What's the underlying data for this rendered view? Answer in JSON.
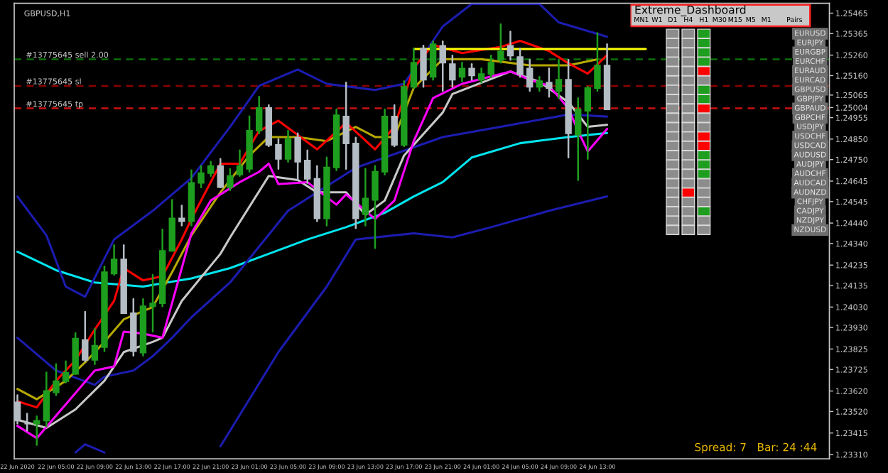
{
  "chart_data": [
    {
      "type": "candlestick",
      "title": "GBPUSD,H1",
      "x": [
        "2020-06-22T01:00",
        "2020-06-22T02:00",
        "2020-06-22T03:00",
        "2020-06-22T04:00",
        "2020-06-22T05:00",
        "2020-06-22T06:00",
        "2020-06-22T07:00",
        "2020-06-22T08:00",
        "2020-06-22T09:00",
        "2020-06-22T10:00",
        "2020-06-22T11:00",
        "2020-06-22T12:00",
        "2020-06-22T13:00",
        "2020-06-22T14:00",
        "2020-06-22T15:00",
        "2020-06-22T16:00",
        "2020-06-22T17:00",
        "2020-06-22T18:00",
        "2020-06-22T19:00",
        "2020-06-22T20:00",
        "2020-06-22T21:00",
        "2020-06-22T22:00",
        "2020-06-22T23:00",
        "2020-06-23T00:00",
        "2020-06-23T01:00",
        "2020-06-23T02:00",
        "2020-06-23T03:00",
        "2020-06-23T04:00",
        "2020-06-23T05:00",
        "2020-06-23T06:00",
        "2020-06-23T07:00",
        "2020-06-23T08:00",
        "2020-06-23T09:00",
        "2020-06-23T10:00",
        "2020-06-23T11:00",
        "2020-06-23T12:00",
        "2020-06-23T13:00",
        "2020-06-23T14:00",
        "2020-06-23T15:00",
        "2020-06-23T16:00",
        "2020-06-23T17:00",
        "2020-06-23T18:00",
        "2020-06-23T19:00",
        "2020-06-23T20:00",
        "2020-06-23T21:00",
        "2020-06-23T22:00",
        "2020-06-23T23:00",
        "2020-06-24T00:00",
        "2020-06-24T01:00",
        "2020-06-24T02:00",
        "2020-06-24T03:00",
        "2020-06-24T04:00",
        "2020-06-24T05:00",
        "2020-06-24T06:00",
        "2020-06-24T07:00",
        "2020-06-24T08:00",
        "2020-06-24T09:00",
        "2020-06-24T10:00",
        "2020-06-24T11:00",
        "2020-06-24T12:00",
        "2020-06-24T13:00",
        "2020-06-24T14:00"
      ],
      "ohlc": [
        [
          1.23565,
          1.23599,
          1.23461,
          1.23475
        ],
        [
          1.23461,
          1.23509,
          1.23427,
          1.23461
        ],
        [
          1.23461,
          1.23496,
          1.23357,
          1.23475
        ],
        [
          1.23475,
          1.2371,
          1.23447,
          1.2362
        ],
        [
          1.23613,
          1.23751,
          1.23599,
          1.23668
        ],
        [
          1.23668,
          1.23765,
          1.23661,
          1.2371
        ],
        [
          1.23703,
          1.23903,
          1.23703,
          1.23876
        ],
        [
          1.23869,
          1.24007,
          1.23765,
          1.23772
        ],
        [
          1.23772,
          1.23924,
          1.23751,
          1.23841
        ],
        [
          1.23834,
          1.24228,
          1.23814,
          1.242
        ],
        [
          1.24193,
          1.24332,
          1.24187,
          1.24263
        ],
        [
          1.24263,
          1.24332,
          1.24,
          1.24
        ],
        [
          1.24,
          1.24069,
          1.23793,
          1.23814
        ],
        [
          1.23807,
          1.24069,
          1.23793,
          1.24034
        ],
        [
          1.24034,
          1.24187,
          1.2391,
          1.24048
        ],
        [
          1.24048,
          1.24408,
          1.24034,
          1.24304
        ],
        [
          1.24304,
          1.24553,
          1.24304,
          1.24463
        ],
        [
          1.24463,
          1.24525,
          1.24428,
          1.24449
        ],
        [
          1.24449,
          1.24698,
          1.24428,
          1.24636
        ],
        [
          1.24636,
          1.24719,
          1.24615,
          1.24684
        ],
        [
          1.24684,
          1.24739,
          1.2467,
          1.24719
        ],
        [
          1.24719,
          1.24753,
          1.24615,
          1.24615
        ],
        [
          1.24615,
          1.24705,
          1.24601,
          1.2467
        ],
        [
          1.24677,
          1.24795,
          1.2467,
          1.24719
        ],
        [
          1.24705,
          1.24961,
          1.24691,
          1.24891
        ],
        [
          1.24891,
          1.25057,
          1.24878,
          1.25002
        ],
        [
          1.25002,
          1.25016,
          1.24815,
          1.24822
        ],
        [
          1.24822,
          1.2485,
          1.24705,
          1.24753
        ],
        [
          1.24753,
          1.24891,
          1.24739,
          1.2485
        ],
        [
          1.24857,
          1.24878,
          1.2465,
          1.24739
        ],
        [
          1.24746,
          1.24795,
          1.24636,
          1.24656
        ],
        [
          1.24656,
          1.24719,
          1.24449,
          1.24463
        ],
        [
          1.24463,
          1.2476,
          1.24428,
          1.24712
        ],
        [
          1.24712,
          1.24995,
          1.24698,
          1.24967
        ],
        [
          1.24961,
          1.25126,
          1.24705,
          1.24829
        ],
        [
          1.24829,
          1.24857,
          1.24415,
          1.24463
        ],
        [
          1.24484,
          1.24705,
          1.24428,
          1.2456
        ],
        [
          1.24553,
          1.24719,
          1.24318,
          1.24691
        ],
        [
          1.24691,
          1.24995,
          1.24677,
          1.24961
        ],
        [
          1.24961,
          1.25016,
          1.24815,
          1.24822
        ],
        [
          1.24822,
          1.25133,
          1.24815,
          1.25105
        ],
        [
          1.25105,
          1.25292,
          1.25099,
          1.25223
        ],
        [
          1.25292,
          1.25306,
          1.25105,
          1.2514
        ],
        [
          1.25154,
          1.25327,
          1.2514,
          1.25313
        ],
        [
          1.25306,
          1.25327,
          1.25085,
          1.25223
        ],
        [
          1.25216,
          1.25258,
          1.25105,
          1.2514
        ],
        [
          1.25154,
          1.25223,
          1.25133,
          1.25195
        ],
        [
          1.25195,
          1.25216,
          1.2514,
          1.25161
        ],
        [
          1.2514,
          1.25195,
          1.25126,
          1.25168
        ],
        [
          1.25168,
          1.25258,
          1.25154,
          1.25223
        ],
        [
          1.25237,
          1.2541,
          1.25223,
          1.25278
        ],
        [
          1.25306,
          1.25375,
          1.25237,
          1.25258
        ],
        [
          1.25251,
          1.25292,
          1.25154,
          1.25168
        ],
        [
          1.25195,
          1.25237,
          1.25085,
          1.25105
        ],
        [
          1.25105,
          1.25154,
          1.25085,
          1.25133
        ],
        [
          1.25126,
          1.25195,
          1.25057,
          1.25099
        ],
        [
          1.25085,
          1.25237,
          1.2505,
          1.2514
        ],
        [
          1.2514,
          1.25237,
          1.2476,
          1.24878
        ],
        [
          1.24871,
          1.2505,
          1.2465,
          1.24995
        ],
        [
          1.24988,
          1.25105,
          1.24753,
          1.25099
        ],
        [
          1.25099,
          1.25368,
          1.25085,
          1.25209
        ],
        [
          1.25209,
          1.25313,
          1.24995,
          1.24995
        ]
      ],
      "colors": [
        "#b4bcc4",
        "#b4bcc4",
        "#1e9e1e",
        "#1e9e1e",
        "#1e9e1e",
        "#1e9e1e",
        "#1e9e1e",
        "#b4bcc4",
        "#1e9e1e",
        "#1e9e1e",
        "#1e9e1e",
        "#b4bcc4",
        "#b4bcc4",
        "#1e9e1e",
        "#1e9e1e",
        "#1e9e1e",
        "#1e9e1e",
        "#b4bcc4",
        "#1e9e1e",
        "#1e9e1e",
        "#1e9e1e",
        "#b4bcc4",
        "#1e9e1e",
        "#1e9e1e",
        "#1e9e1e",
        "#1e9e1e",
        "#b4bcc4",
        "#b4bcc4",
        "#1e9e1e",
        "#b4bcc4",
        "#b4bcc4",
        "#b4bcc4",
        "#1e9e1e",
        "#1e9e1e",
        "#b4bcc4",
        "#b4bcc4",
        "#1e9e1e",
        "#1e9e1e",
        "#1e9e1e",
        "#b4bcc4",
        "#1e9e1e",
        "#1e9e1e",
        "#b4bcc4",
        "#1e9e1e",
        "#b4bcc4",
        "#b4bcc4",
        "#1e9e1e",
        "#b4bcc4",
        "#1e9e1e",
        "#1e9e1e",
        "#1e9e1e",
        "#b4bcc4",
        "#b4bcc4",
        "#b4bcc4",
        "#1e9e1e",
        "#b4bcc4",
        "#1e9e1e",
        "#b4bcc4",
        "#1e9e1e",
        "#1e9e1e",
        "#1e9e1e",
        "#b4bcc4"
      ],
      "series": [
        {
          "type": "line",
          "color": "#00e5ee",
          "x": [
            "2020-06-22T01:00",
            "2020-06-22T05:00",
            "2020-06-22T09:00",
            "2020-06-22T14:00",
            "2020-06-22T19:00",
            "2020-06-22T23:00",
            "2020-06-23T03:00",
            "2020-06-23T07:00",
            "2020-06-23T11:00",
            "2020-06-23T15:00",
            "2020-06-23T18:00",
            "2020-06-23T21:00",
            "2020-06-24T00:00",
            "2020-06-24T05:00",
            "2020-06-24T10:00",
            "2020-06-24T14:00"
          ],
          "values": [
            1.243,
            1.2421,
            1.2415,
            1.2413,
            1.2417,
            1.2422,
            1.2429,
            1.2436,
            1.2442,
            1.2449,
            1.2457,
            1.2464,
            1.2476,
            1.2483,
            1.2486,
            1.2488
          ]
        },
        {
          "type": "line",
          "color": "#1c1cb0",
          "x": [
            "2020-06-22T01:00",
            "2020-06-22T04:00",
            "2020-06-22T06:00",
            "2020-06-22T08:00",
            "2020-06-22T11:00",
            "2020-06-22T15:00",
            "2020-06-22T19:00",
            "2020-06-22T23:00",
            "2020-06-23T02:00",
            "2020-06-23T06:00",
            "2020-06-23T09:00",
            "2020-06-23T14:00",
            "2020-06-23T17:00",
            "2020-06-23T21:00",
            "2020-06-24T00:00",
            "2020-06-24T07:00",
            "2020-06-24T09:00",
            "2020-06-24T14:00"
          ],
          "values": [
            1.2457,
            1.2438,
            1.2413,
            1.2408,
            1.2436,
            1.245,
            1.2466,
            1.2491,
            1.2511,
            1.2519,
            1.2512,
            1.2509,
            1.2512,
            1.254,
            1.2551,
            1.2551,
            1.2542,
            1.2535
          ]
        },
        {
          "type": "line",
          "color": "#1c1cb0",
          "x": [
            "2020-06-22T01:00",
            "2020-06-22T05:00",
            "2020-06-22T09:00",
            "2020-06-22T10:00",
            "2020-06-22T13:00",
            "2020-06-22T15:00",
            "2020-06-22T17:00",
            "2020-06-22T19:00",
            "2020-06-22T23:00",
            "2020-06-23T05:00",
            "2020-06-23T12:00",
            "2020-06-23T21:00",
            "2020-06-24T03:00",
            "2020-06-24T10:00",
            "2020-06-24T14:00"
          ],
          "values": [
            1.2388,
            1.2372,
            1.2365,
            1.2369,
            1.2372,
            1.2379,
            1.2388,
            1.2398,
            1.2415,
            1.245,
            1.2471,
            1.2486,
            1.2491,
            1.2497,
            1.2496
          ]
        },
        {
          "type": "line",
          "color": "#1c1cb0",
          "x": [
            "2020-06-22T07:00",
            "2020-06-22T08:00",
            "2020-06-22T10:00",
            "2020-06-22T15:00",
            "2020-06-22T22:00",
            "2020-06-23T04:00",
            "2020-06-23T09:00",
            "2020-06-23T12:00",
            "2020-06-23T18:00",
            "2020-06-23T22:00",
            "2020-06-24T02:00",
            "2020-06-24T08:00",
            "2020-06-24T14:00"
          ],
          "values": [
            1.2332,
            1.2336,
            1.2332,
            null,
            1.2335,
            1.2381,
            1.2413,
            1.2436,
            1.2439,
            1.2437,
            1.2442,
            1.245,
            1.2457
          ]
        },
        {
          "type": "line",
          "color": "#c8c8c8",
          "x": [
            "2020-06-22T01:00",
            "2020-06-22T04:00",
            "2020-06-22T07:00",
            "2020-06-22T10:00",
            "2020-06-22T12:00",
            "2020-06-22T15:00",
            "2020-06-22T16:00",
            "2020-06-22T18:00",
            "2020-06-22T22:00",
            "2020-06-22T23:00",
            "2020-06-23T03:00",
            "2020-06-23T06:00",
            "2020-06-23T08:00",
            "2020-06-23T11:00",
            "2020-06-23T13:00",
            "2020-06-23T15:00",
            "2020-06-23T17:00",
            "2020-06-23T21:00",
            "2020-06-23T22:00",
            "2020-06-24T04:00",
            "2020-06-24T07:00",
            "2020-06-24T10:00",
            "2020-06-24T12:00",
            "2020-06-24T14:00"
          ],
          "values": [
            1.2348,
            1.2344,
            1.2353,
            1.2367,
            1.2381,
            1.2386,
            1.2388,
            1.2406,
            1.2429,
            1.2437,
            1.2467,
            1.2465,
            1.2459,
            1.2459,
            1.2448,
            1.2455,
            1.2477,
            1.2498,
            1.2507,
            1.2518,
            1.2513,
            1.2503,
            1.2491,
            1.2492
          ]
        },
        {
          "type": "line",
          "color": "#b5a800",
          "x": [
            "2020-06-22T01:00",
            "2020-06-22T03:00",
            "2020-06-22T06:00",
            "2020-06-22T08:00",
            "2020-06-22T10:00",
            "2020-06-22T12:00",
            "2020-06-22T15:00",
            "2020-06-22T17:00",
            "2020-06-22T19:00",
            "2020-06-22T22:00",
            "2020-06-23T01:00",
            "2020-06-23T03:00",
            "2020-06-23T06:00",
            "2020-06-23T09:00",
            "2020-06-23T12:00",
            "2020-06-23T14:00",
            "2020-06-23T16:00",
            "2020-06-23T18:00",
            "2020-06-23T21:00",
            "2020-06-24T01:00",
            "2020-06-24T06:00",
            "2020-06-24T10:00",
            "2020-06-24T13:00"
          ],
          "values": [
            1.2363,
            1.2358,
            1.2367,
            1.2376,
            1.2386,
            1.2397,
            1.2403,
            1.242,
            1.2438,
            1.2459,
            1.2477,
            1.2486,
            1.2486,
            1.2484,
            1.2491,
            1.2486,
            1.2486,
            1.251,
            1.2524,
            1.2524,
            1.2521,
            1.2521,
            1.2524
          ]
        },
        {
          "type": "line",
          "color": "#ff00ff",
          "x": [
            "2020-06-22T01:00",
            "2020-06-22T03:00",
            "2020-06-22T05:00",
            "2020-06-22T09:00",
            "2020-06-22T11:00",
            "2020-06-22T12:00",
            "2020-06-22T14:00",
            "2020-06-22T16:00",
            "2020-06-22T19:00",
            "2020-06-22T21:00",
            "2020-06-23T00:00",
            "2020-06-23T02:00",
            "2020-06-23T03:00",
            "2020-06-23T04:00",
            "2020-06-23T07:00",
            "2020-06-23T10:00",
            "2020-06-23T11:00",
            "2020-06-23T13:00",
            "2020-06-23T14:00",
            "2020-06-23T16:00",
            "2020-06-23T18:00",
            "2020-06-23T20:00",
            "2020-06-23T23:00",
            "2020-06-24T04:00",
            "2020-06-24T06:00",
            "2020-06-24T08:00",
            "2020-06-24T10:00",
            "2020-06-24T11:00",
            "2020-06-24T12:00",
            "2020-06-24T14:00"
          ],
          "values": [
            1.2345,
            1.2339,
            1.235,
            1.2372,
            1.2374,
            1.2391,
            1.239,
            1.2388,
            1.2439,
            1.2455,
            1.2464,
            1.2469,
            1.2473,
            1.2463,
            1.2464,
            1.2453,
            1.2458,
            1.245,
            1.2446,
            1.2455,
            1.2484,
            1.2505,
            1.2512,
            1.2518,
            1.2514,
            1.2511,
            1.25,
            1.2489,
            1.2479,
            1.249
          ]
        },
        {
          "type": "line",
          "color": "#ff0000",
          "x": [
            "2020-06-22T01:00",
            "2020-06-22T03:00",
            "2020-06-22T05:00",
            "2020-06-22T07:00",
            "2020-06-22T09:00",
            "2020-06-22T11:00",
            "2020-06-22T12:00",
            "2020-06-22T14:00",
            "2020-06-22T16:00",
            "2020-06-22T18:00",
            "2020-06-22T19:00",
            "2020-06-22T22:00",
            "2020-06-23T00:00",
            "2020-06-23T02:00",
            "2020-06-23T04:00",
            "2020-06-23T08:00",
            "2020-06-23T11:00",
            "2020-06-23T14:00",
            "2020-06-23T16:00",
            "2020-06-23T18:00",
            "2020-06-23T20:00",
            "2020-06-23T23:00",
            "2020-06-24T03:00",
            "2020-06-24T05:00",
            "2020-06-24T08:00",
            "2020-06-24T10:00",
            "2020-06-24T12:00",
            "2020-06-24T14:00"
          ],
          "values": [
            1.2357,
            1.2354,
            1.2367,
            1.2377,
            1.2392,
            1.2406,
            1.2422,
            1.2416,
            1.2418,
            1.2436,
            1.2446,
            1.2473,
            1.2473,
            1.2489,
            1.2494,
            1.248,
            1.2493,
            1.248,
            1.2491,
            1.252,
            1.2531,
            1.2527,
            1.253,
            1.2533,
            1.2528,
            1.2522,
            1.2517,
            1.2526
          ]
        },
        {
          "type": "line",
          "color": "#ffff00",
          "x": [
            "2020-06-23T18:00",
            "2020-06-24T18:00"
          ],
          "values": [
            1.2529,
            1.2529
          ]
        }
      ],
      "ref_lines": [
        {
          "axis": "y",
          "value": 1.2524,
          "label": "#13775645 sell 2.00",
          "color": "#0a6e0a",
          "line_style": "dashed"
        },
        {
          "axis": "y",
          "value": 1.2511,
          "label": "#13775645 sl",
          "color": "#8b0000",
          "line_style": "dashed"
        },
        {
          "axis": "y",
          "value": 1.25,
          "label": "#13775645 tp",
          "color": "#cc1010",
          "line_style": "dashed"
        }
      ],
      "annotations": [
        "Spread: 7   Bar: 24 :44"
      ],
      "xlim": [
        "2020-06-22T00:40",
        "2020-06-25T13:00"
      ],
      "xticks": [
        {
          "value": "2020-06-22T01:00",
          "label": "22 Jun 2020"
        },
        {
          "value": "2020-06-22T05:00",
          "label": "22 Jun 05:00"
        },
        {
          "value": "2020-06-22T09:00",
          "label": "22 Jun 09:00"
        },
        {
          "value": "2020-06-22T13:00",
          "label": "22 Jun 13:00"
        },
        {
          "value": "2020-06-22T17:00",
          "label": "22 Jun 17:00"
        },
        {
          "value": "2020-06-22T21:00",
          "label": "22 Jun 21:00"
        },
        {
          "value": "2020-06-23T01:00",
          "label": "23 Jun 01:00"
        },
        {
          "value": "2020-06-23T05:00",
          "label": "23 Jun 05:00"
        },
        {
          "value": "2020-06-23T09:00",
          "label": "23 Jun 09:00"
        },
        {
          "value": "2020-06-23T13:00",
          "label": "23 Jun 13:00"
        },
        {
          "value": "2020-06-23T17:00",
          "label": "23 Jun 17:00"
        },
        {
          "value": "2020-06-23T21:00",
          "label": "23 Jun 21:00"
        },
        {
          "value": "2020-06-24T01:00",
          "label": "24 Jun 01:00"
        },
        {
          "value": "2020-06-24T05:00",
          "label": "24 Jun 05:00"
        },
        {
          "value": "2020-06-24T09:00",
          "label": "24 Jun 09:00"
        },
        {
          "value": "2020-06-24T13:00",
          "label": "24 Jun 13:00"
        }
      ],
      "ylim": [
        1.23289,
        1.25513
      ],
      "yticks": [
        {
          "value": 1.2331,
          "label": "1.23310"
        },
        {
          "value": 1.23415,
          "label": "1.23415"
        },
        {
          "value": 1.2352,
          "label": "1.23520"
        },
        {
          "value": 1.2362,
          "label": "1.23620"
        },
        {
          "value": 1.23725,
          "label": "1.23725"
        },
        {
          "value": 1.23825,
          "label": "1.23825"
        },
        {
          "value": 1.2393,
          "label": "1.23930"
        },
        {
          "value": 1.2403,
          "label": "1.24030"
        },
        {
          "value": 1.24135,
          "label": "1.24135"
        },
        {
          "value": 1.24235,
          "label": "1.24235"
        },
        {
          "value": 1.2434,
          "label": "1.24340"
        },
        {
          "value": 1.2444,
          "label": "1.24440"
        },
        {
          "value": 1.24545,
          "label": "1.24545"
        },
        {
          "value": 1.24645,
          "label": "1.24645"
        },
        {
          "value": 1.2475,
          "label": "1.24750"
        },
        {
          "value": 1.2485,
          "label": "1.24850"
        },
        {
          "value": 1.24955,
          "label": "1.24955"
        },
        {
          "value": 1.25004,
          "label": "1.25004"
        },
        {
          "value": 1.25065,
          "label": "1.25065"
        },
        {
          "value": 1.2516,
          "label": "1.25160"
        },
        {
          "value": 1.2526,
          "label": "1.25260"
        },
        {
          "value": 1.25365,
          "label": "1.25365"
        },
        {
          "value": 1.25465,
          "label": "1.25465"
        }
      ],
      "grid": false,
      "legend": false
    },
    {
      "type": "other",
      "title": "Extreme_Dashboard",
      "categories": [
        "MN1",
        "W1",
        "D1",
        "H4",
        "H1",
        "M30",
        "M15",
        "M5",
        "M1",
        "Pairs"
      ],
      "y_categories": [
        "EURUSD",
        "EURJPY",
        "EURGBP",
        "EURCHF",
        "EURAUD",
        "EURCAD",
        "GBPUSD",
        "GBPJPY",
        "GBPAUD",
        "GBPCHF",
        "USDJPY",
        "USDCHF",
        "USDCAD",
        "AUDUSD",
        "AUDJPY",
        "AUDCHF",
        "AUDCAD",
        "AUDNZD",
        "CHFJPY",
        "CADJPY",
        "NZDJPY",
        "NZDUSD"
      ],
      "colors": [
        "#ff0000",
        "#8c8c8c",
        "#1e9e1e"
      ]
    }
  ]
}
